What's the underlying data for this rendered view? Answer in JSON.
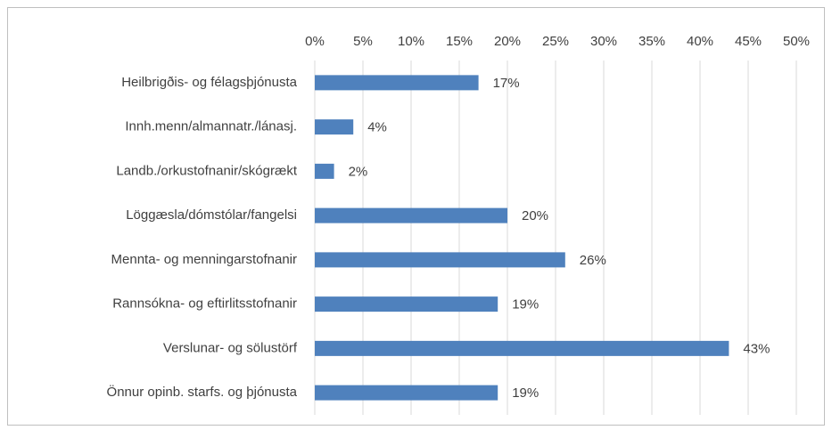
{
  "chart_data": {
    "type": "bar",
    "orientation": "horizontal",
    "categories": [
      "Heilbrigðis- og félagsþjónusta",
      "Innh.menn/almannatr./lánasj.",
      "Landb./orkustofnanir/skógrækt",
      "Löggæsla/dómstólar/fangelsi",
      "Mennta- og menningarstofnanir",
      "Rannsókna- og eftirlitsstofnanir",
      "Verslunar- og sölustörf",
      "Önnur opinb. starfs. og þjónusta"
    ],
    "values": [
      17,
      4,
      2,
      20,
      26,
      19,
      43,
      19
    ],
    "value_labels": [
      "17%",
      "4%",
      "2%",
      "20%",
      "26%",
      "19%",
      "43%",
      "19%"
    ],
    "color": "#4f81bd",
    "xlim": [
      0,
      50
    ],
    "xticks": [
      {
        "value": 0,
        "label": "0%"
      },
      {
        "value": 5,
        "label": "5%"
      },
      {
        "value": 10,
        "label": "10%"
      },
      {
        "value": 15,
        "label": "15%"
      },
      {
        "value": 20,
        "label": "20%"
      },
      {
        "value": 25,
        "label": "25%"
      },
      {
        "value": 30,
        "label": "30%"
      },
      {
        "value": 35,
        "label": "35%"
      },
      {
        "value": 40,
        "label": "40%"
      },
      {
        "value": 45,
        "label": "45%"
      },
      {
        "value": 50,
        "label": "50%"
      }
    ],
    "grid": true
  }
}
